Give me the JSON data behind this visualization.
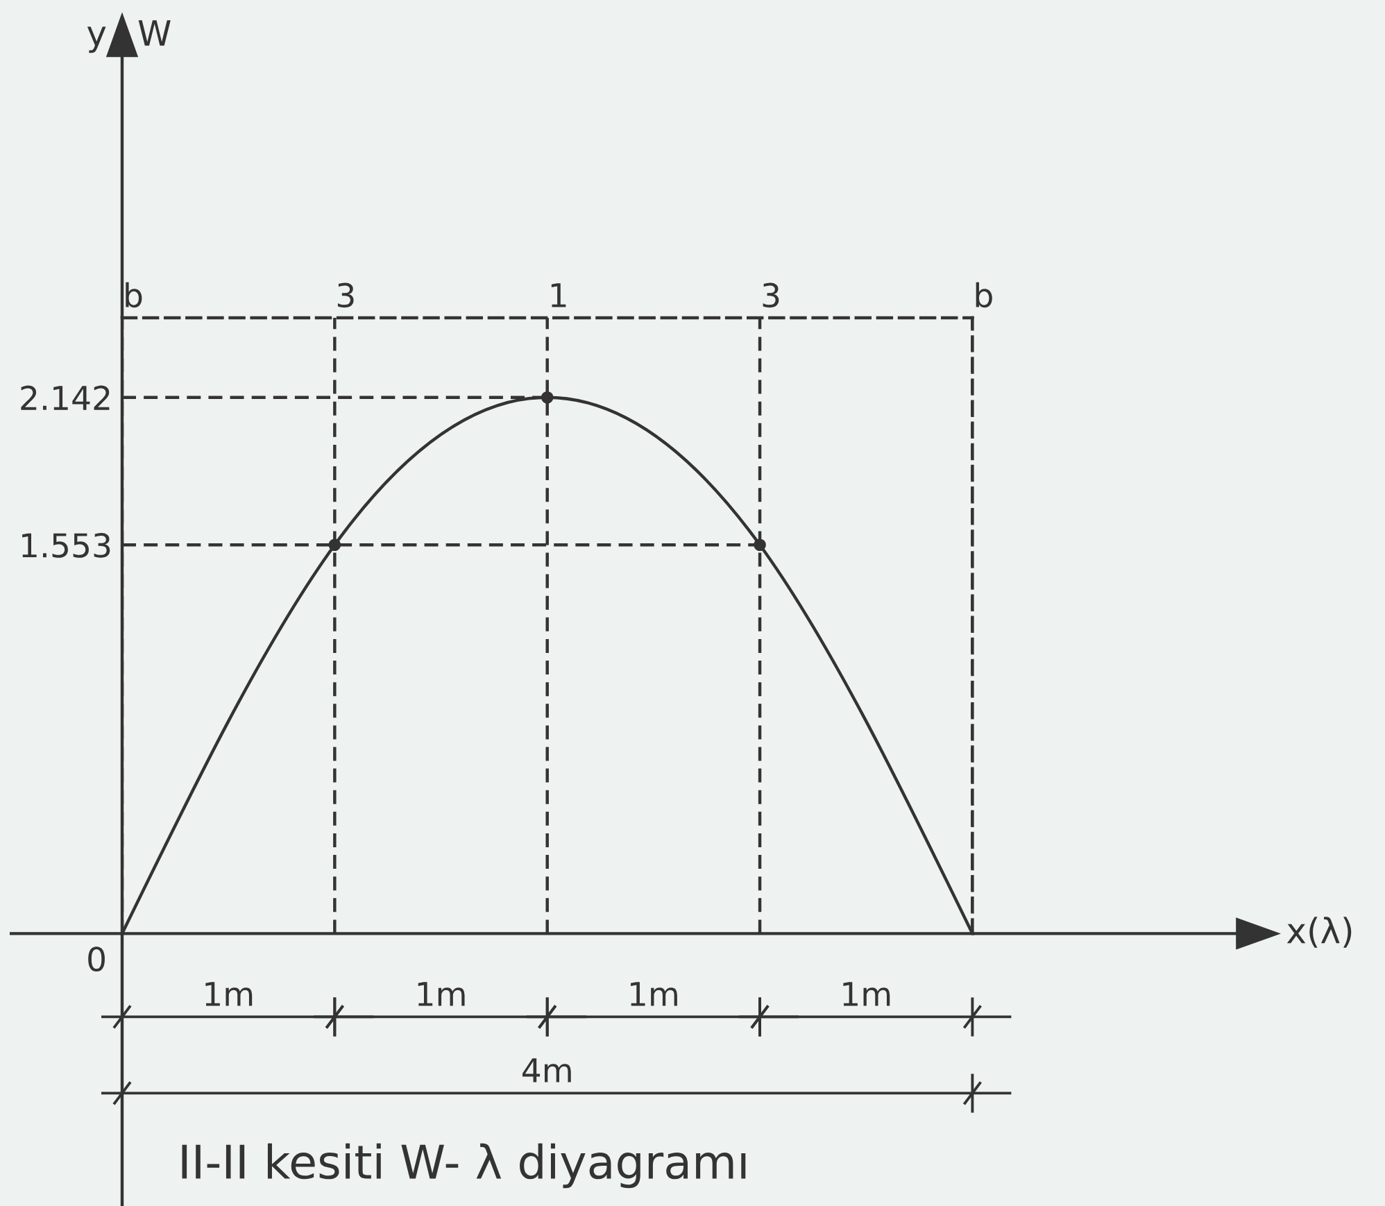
{
  "chart_data": {
    "type": "line",
    "title": "II-II kesiti W- λ diyagramı",
    "categories": [
      "b",
      "3",
      "1",
      "3",
      "b"
    ],
    "series": [
      {
        "values": [
          0,
          1.553,
          2.142,
          1.553,
          0
        ],
        "color": "#333333"
      },
      {
        "type": "scatter",
        "values": [
          null,
          1.553,
          2.142,
          1.553,
          null
        ],
        "color": "#333333",
        "marker": "circle"
      }
    ],
    "ylim": [
      0,
      2.46
    ],
    "yticks": [
      0,
      1.553,
      2.142
    ],
    "grid": "x",
    "ref_lines": [
      {
        "axis": "y",
        "value": 2.142,
        "line_style": "dashed"
      },
      {
        "axis": "y",
        "value": 1.553,
        "line_style": "dashed"
      }
    ],
    "annotations": [
      "x(λ)",
      "y W",
      "1m",
      "1m",
      "1m",
      "1m",
      "4m"
    ]
  }
}
